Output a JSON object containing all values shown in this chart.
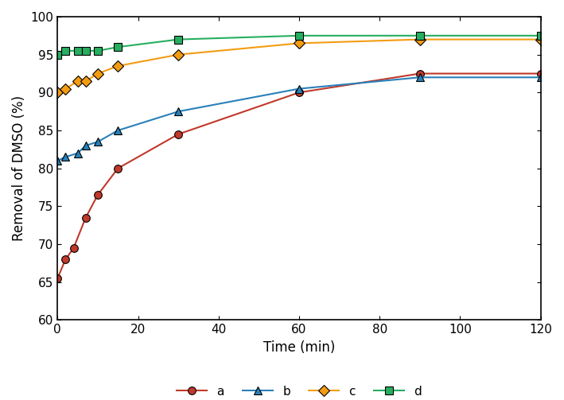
{
  "series": {
    "a": {
      "x": [
        0,
        2,
        4,
        7,
        10,
        15,
        30,
        60,
        90,
        120
      ],
      "y": [
        65.5,
        68.0,
        69.5,
        73.5,
        76.5,
        80.0,
        84.5,
        90.0,
        92.5,
        92.5
      ],
      "color": "#c0392b",
      "marker": "o",
      "label": "a"
    },
    "b": {
      "x": [
        0,
        2,
        5,
        7,
        10,
        15,
        30,
        60,
        90,
        120
      ],
      "y": [
        81.0,
        81.5,
        82.0,
        83.0,
        83.5,
        85.0,
        87.5,
        90.5,
        92.0,
        92.0
      ],
      "color": "#2980b9",
      "marker": "^",
      "label": "b"
    },
    "c": {
      "x": [
        0,
        2,
        5,
        7,
        10,
        15,
        30,
        60,
        90,
        120
      ],
      "y": [
        90.0,
        90.5,
        91.5,
        91.5,
        92.5,
        93.5,
        95.0,
        96.5,
        97.0,
        97.0
      ],
      "color": "#f39c12",
      "marker": "D",
      "label": "c"
    },
    "d": {
      "x": [
        0,
        2,
        5,
        7,
        10,
        15,
        30,
        60,
        90,
        120
      ],
      "y": [
        95.0,
        95.5,
        95.5,
        95.5,
        95.5,
        96.0,
        97.0,
        97.5,
        97.5,
        97.5
      ],
      "color": "#27ae60",
      "marker": "s",
      "label": "d"
    }
  },
  "xlabel": "Time (min)",
  "ylabel": "Removal of DMSO (%)",
  "xlim": [
    0,
    120
  ],
  "ylim": [
    60,
    100
  ],
  "xticks": [
    0,
    20,
    40,
    60,
    80,
    100,
    120
  ],
  "yticks": [
    60,
    65,
    70,
    75,
    80,
    85,
    90,
    95,
    100
  ],
  "legend_position": "lower center",
  "background_color": "#ffffff"
}
